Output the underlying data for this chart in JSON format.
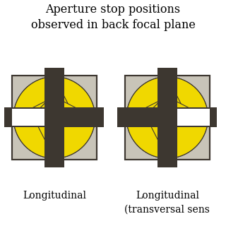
{
  "title_line1": "Aperture stop positions",
  "title_line2": "observed in back focal plane",
  "label1": "Longitudinal",
  "label2": "Longitudinal",
  "label2b": "(transversal sens",
  "bg_color": "#ffffff",
  "square_bg": "#c8c4b8",
  "dark_color": "#3d3730",
  "yellow_color": "#f0d800",
  "yellow_edge": "#3d3730",
  "title_fontsize": 11.5,
  "label_fontsize": 10
}
